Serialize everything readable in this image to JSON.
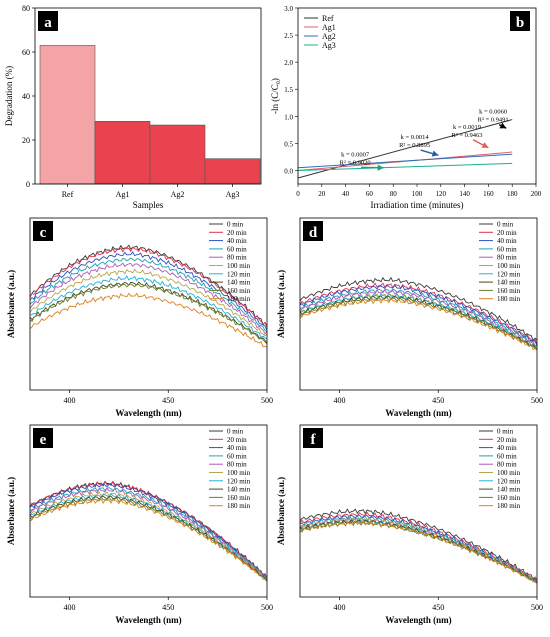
{
  "colors": {
    "bar_light": "#f4a3a6",
    "bar_dark": "#e8434f",
    "tag_bg": "#000000",
    "tag_fg": "#ffffff",
    "ref": "#333333",
    "ag1": "#e25c6e",
    "ag2": "#2f6fb3",
    "ag3": "#19b090",
    "arrow_black": "#000000",
    "arrow_blue": "#1f5fae",
    "arrow_red": "#e65a5a",
    "arrow_green": "#1aa37a"
  },
  "chart_data": [
    {
      "type": "bar",
      "panel": "a",
      "categories": [
        "Ref",
        "Ag1",
        "Ag2",
        "Ag3"
      ],
      "values": [
        63,
        28.5,
        26.8,
        11.5
      ],
      "xlabel": "Samples",
      "ylabel": "Degradation (%)",
      "ylim": [
        0,
        80
      ],
      "yticks": [
        0,
        20,
        40,
        60,
        80
      ]
    },
    {
      "type": "line",
      "panel": "b",
      "xlabel": "Irradiation time (minutes)",
      "ylabel": "-ln (C/C₀)",
      "xlim": [
        0,
        200
      ],
      "ylim": [
        -0.25,
        3.0
      ],
      "xticks": [
        0,
        20,
        40,
        60,
        80,
        100,
        120,
        140,
        160,
        180,
        200
      ],
      "yticks": [
        0.0,
        0.5,
        1.0,
        1.5,
        2.0,
        2.5,
        3.0
      ],
      "ytick_labels": [
        "0.0",
        "0.5",
        "1.0",
        "1.5",
        "2.0",
        "2.5",
        "3.0"
      ],
      "legend_position": "top-left",
      "series": [
        {
          "name": "Ref",
          "color_key": "ref",
          "x": [
            0,
            180
          ],
          "y": [
            -0.14,
            0.94
          ]
        },
        {
          "name": "Ag1",
          "color_key": "ag1",
          "x": [
            0,
            180
          ],
          "y": [
            0.0,
            0.34
          ]
        },
        {
          "name": "Ag2",
          "color_key": "ag2",
          "x": [
            0,
            180
          ],
          "y": [
            0.05,
            0.3
          ]
        },
        {
          "name": "Ag3",
          "color_key": "ag3",
          "x": [
            0,
            180
          ],
          "y": [
            0.0,
            0.13
          ]
        }
      ],
      "annotations": [
        {
          "k": "k = 0.0060",
          "r2": "R² = 0.9491",
          "x": 164,
          "y": 1.05,
          "arrow_to": [
            175,
            0.78
          ],
          "arrow_color": "arrow_black"
        },
        {
          "k": "k = 0.0019",
          "r2": "R² = 0.9463",
          "x": 142,
          "y": 0.77,
          "arrow_to": [
            160,
            0.42
          ],
          "arrow_color": "arrow_red"
        },
        {
          "k": "k = 0.0014",
          "r2": "R² = 0.8895",
          "x": 98,
          "y": 0.58,
          "arrow_to": [
            118,
            0.28
          ],
          "arrow_color": "arrow_blue"
        },
        {
          "k": "k = 0.0007",
          "r2": "R² = 0.9020",
          "x": 48,
          "y": 0.26,
          "arrow_to": [
            72,
            0.05
          ],
          "arrow_color": "arrow_green"
        }
      ]
    },
    {
      "type": "line",
      "panel": "c",
      "xlabel": "Wavelength (nm)",
      "ylabel": "Absorbance (a.u.)",
      "xlim": [
        380,
        500
      ],
      "ylim": [
        0,
        1
      ],
      "xticks": [
        400,
        450,
        500
      ],
      "yticks_shown": false,
      "legend_position": "top-right",
      "peak": 432,
      "left_frac": 0.66,
      "right_frac": 0.45,
      "curves": [
        {
          "name": "0 min",
          "color": "#3a3a3a",
          "amp": 0.83
        },
        {
          "name": "20 min",
          "color": "#e0304a",
          "amp": 0.82
        },
        {
          "name": "40 min",
          "color": "#2a4fc4",
          "amp": 0.79
        },
        {
          "name": "60 min",
          "color": "#1aa3b0",
          "amp": 0.76
        },
        {
          "name": "80 min",
          "color": "#b05ab8",
          "amp": 0.73
        },
        {
          "name": "100 min",
          "color": "#b8a84a",
          "amp": 0.69
        },
        {
          "name": "120 min",
          "color": "#23b0d8",
          "amp": 0.65
        },
        {
          "name": "140 min",
          "color": "#4a4a1f",
          "amp": 0.62
        },
        {
          "name": "160 min",
          "color": "#6a7f2a",
          "amp": 0.61
        },
        {
          "name": "180 min",
          "color": "#d98220",
          "amp": 0.55
        }
      ]
    },
    {
      "type": "line",
      "panel": "d",
      "xlabel": "Wavelength (nm)",
      "ylabel": "Absorbance (a.u.)",
      "xlim": [
        380,
        500
      ],
      "ylim": [
        0,
        1
      ],
      "xticks": [
        400,
        450,
        500
      ],
      "yticks_shown": false,
      "legend_position": "top-right",
      "peak": 425,
      "left_frac": 0.82,
      "right_frac": 0.45,
      "curves": [
        {
          "name": "0 min",
          "color": "#3a3a3a",
          "amp": 0.64
        },
        {
          "name": "20 min",
          "color": "#e0304a",
          "amp": 0.61
        },
        {
          "name": "40 min",
          "color": "#2a4fc4",
          "amp": 0.6
        },
        {
          "name": "60 min",
          "color": "#1aa3b0",
          "amp": 0.58
        },
        {
          "name": "80 min",
          "color": "#b05ab8",
          "amp": 0.57
        },
        {
          "name": "100 min",
          "color": "#b8a84a",
          "amp": 0.55
        },
        {
          "name": "120 min",
          "color": "#23b0d8",
          "amp": 0.55
        },
        {
          "name": "140 min",
          "color": "#4a4a1f",
          "amp": 0.54
        },
        {
          "name": "160 min",
          "color": "#6a7f2a",
          "amp": 0.53
        },
        {
          "name": "180 min",
          "color": "#d98220",
          "amp": 0.52
        }
      ]
    },
    {
      "type": "line",
      "panel": "e",
      "xlabel": "Wavelength (nm)",
      "ylabel": "Absorbance (a.u.)",
      "xlim": [
        380,
        500
      ],
      "ylim": [
        0,
        1
      ],
      "xticks": [
        400,
        450,
        500
      ],
      "yticks_shown": false,
      "legend_position": "top-right",
      "peak": 420,
      "left_frac": 0.8,
      "right_frac": 0.17,
      "curves": [
        {
          "name": "0 min",
          "color": "#3a3a3a",
          "amp": 0.66
        },
        {
          "name": "20 min",
          "color": "#e0304a",
          "amp": 0.66
        },
        {
          "name": "40 min",
          "color": "#2a4fc4",
          "amp": 0.65
        },
        {
          "name": "60 min",
          "color": "#1aa3b0",
          "amp": 0.63
        },
        {
          "name": "80 min",
          "color": "#b05ab8",
          "amp": 0.62
        },
        {
          "name": "100 min",
          "color": "#b8a84a",
          "amp": 0.6
        },
        {
          "name": "120 min",
          "color": "#23b0d8",
          "amp": 0.59
        },
        {
          "name": "140 min",
          "color": "#4a4a1f",
          "amp": 0.58
        },
        {
          "name": "160 min",
          "color": "#6a7f2a",
          "amp": 0.57
        },
        {
          "name": "180 min",
          "color": "#d98220",
          "amp": 0.56
        }
      ]
    },
    {
      "type": "line",
      "panel": "f",
      "xlabel": "Wavelength (nm)",
      "ylabel": "Absorbance (a.u.)",
      "xlim": [
        380,
        500
      ],
      "ylim": [
        0,
        1
      ],
      "xticks": [
        400,
        450,
        500
      ],
      "yticks_shown": false,
      "legend_position": "top-right",
      "peak": 412,
      "left_frac": 0.9,
      "right_frac": 0.2,
      "curves": [
        {
          "name": "0 min",
          "color": "#3a3a3a",
          "amp": 0.5
        },
        {
          "name": "20 min",
          "color": "#e0304a",
          "amp": 0.48
        },
        {
          "name": "40 min",
          "color": "#2a4fc4",
          "amp": 0.47
        },
        {
          "name": "60 min",
          "color": "#1aa3b0",
          "amp": 0.46
        },
        {
          "name": "80 min",
          "color": "#b05ab8",
          "amp": 0.45
        },
        {
          "name": "100 min",
          "color": "#b8a84a",
          "amp": 0.45
        },
        {
          "name": "120 min",
          "color": "#23b0d8",
          "amp": 0.44
        },
        {
          "name": "140 min",
          "color": "#4a4a1f",
          "amp": 0.44
        },
        {
          "name": "160 min",
          "color": "#6a7f2a",
          "amp": 0.43
        },
        {
          "name": "180 min",
          "color": "#d98220",
          "amp": 0.43
        }
      ]
    }
  ]
}
